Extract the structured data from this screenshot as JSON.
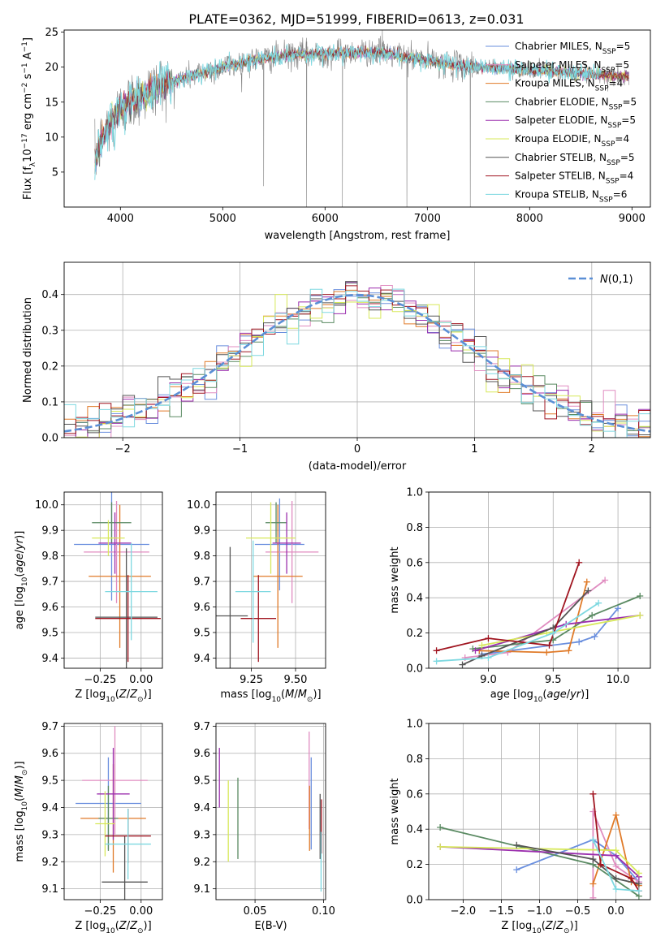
{
  "figure_title": "PLATE=0362, MJD=51999, FIBERID=0613, z=0.031",
  "colors": {
    "Chabrier MILES": "#6a8fde",
    "Salpeter MILES": "#e08cc0",
    "Kroupa MILES": "#e07a28",
    "Chabrier ELODIE": "#5a8a62",
    "Salpeter ELODIE": "#9b2fae",
    "Kroupa ELODIE": "#d7e85a",
    "Chabrier STELIB": "#555555",
    "Salpeter STELIB": "#a01520",
    "Kroupa STELIB": "#7dd8e0",
    "gauss": "#5b8fd6"
  },
  "chart_data": [
    {
      "id": "spectrum",
      "type": "line",
      "xlabel": "wavelength [Angstrom, rest frame]",
      "ylabel_parts": [
        "Flux [f",
        "λ",
        "10",
        "−17",
        " erg cm",
        "−2",
        " s",
        "−1",
        " A",
        "−1",
        "]"
      ],
      "xlim": [
        3450,
        9180
      ],
      "ylim": [
        0,
        25.3
      ],
      "xticks": [
        4000,
        5000,
        6000,
        7000,
        8000,
        9000
      ],
      "yticks": [
        5,
        10,
        15,
        20,
        25
      ],
      "legend": [
        {
          "name": "Chabrier MILES",
          "nssp": "5"
        },
        {
          "name": "Salpeter MILES",
          "nssp": "5"
        },
        {
          "name": "Kroupa MILES",
          "nssp": "4"
        },
        {
          "name": "Chabrier ELODIE",
          "nssp": "5"
        },
        {
          "name": "Salpeter ELODIE",
          "nssp": "5"
        },
        {
          "name": "Kroupa ELODIE",
          "nssp": "4"
        },
        {
          "name": "Chabrier STELIB",
          "nssp": "5"
        },
        {
          "name": "Salpeter STELIB",
          "nssp": "4"
        },
        {
          "name": "Kroupa STELIB",
          "nssp": "6"
        }
      ],
      "nssp_prefix": "N",
      "nssp_sub": "SSP",
      "continuum": [
        [
          3750,
          6.5
        ],
        [
          3800,
          9
        ],
        [
          3900,
          12
        ],
        [
          4000,
          14
        ],
        [
          4200,
          16
        ],
        [
          4400,
          17.5
        ],
        [
          4700,
          18.8
        ],
        [
          5000,
          20
        ],
        [
          5300,
          21
        ],
        [
          5700,
          21.8
        ],
        [
          6100,
          22
        ],
        [
          6500,
          22.2
        ],
        [
          6900,
          21.2
        ],
        [
          7300,
          20.2
        ],
        [
          7600,
          20
        ],
        [
          8000,
          19.6
        ],
        [
          8400,
          19.2
        ],
        [
          8800,
          18.8
        ],
        [
          8970,
          18.6
        ]
      ],
      "spikes": [
        [
          5400,
          3
        ],
        [
          5820,
          0
        ],
        [
          6170,
          0
        ],
        [
          6560,
          25.3
        ],
        [
          6800,
          0
        ],
        [
          7420,
          0
        ]
      ]
    },
    {
      "id": "residuals",
      "type": "histogram",
      "xlabel": "(data-model)/error",
      "ylabel": "Normed distribution",
      "xlim": [
        -2.5,
        2.5
      ],
      "ylim": [
        0,
        0.49
      ],
      "xticks": [
        -2,
        -1,
        0,
        1,
        2
      ],
      "yticks": [
        0.0,
        0.1,
        0.2,
        0.3,
        0.4
      ],
      "gauss_label": "N(0,1)",
      "bin_width": 0.1
    },
    {
      "id": "age_vs_Z",
      "type": "errorbar",
      "xlabel": "Z [log10(Z/Z☉)]",
      "ylabel": "age [log10(age/yr)]",
      "xlim": [
        -0.47,
        0.13
      ],
      "ylim": [
        9.36,
        10.05
      ],
      "xticks": [
        -0.25,
        0.0
      ],
      "yticks": [
        9.4,
        9.5,
        9.6,
        9.7,
        9.8,
        9.9,
        10.0
      ],
      "points": [
        {
          "name": "Chabrier MILES",
          "x": -0.18,
          "xerr": 0.23,
          "y": 9.845,
          "yerr": 0.22
        },
        {
          "name": "Salpeter MILES",
          "x": -0.15,
          "xerr": 0.2,
          "y": 9.815,
          "yerr": 0.2
        },
        {
          "name": "Kroupa MILES",
          "x": -0.13,
          "xerr": 0.19,
          "y": 9.72,
          "yerr": 0.28
        },
        {
          "name": "Chabrier ELODIE",
          "x": -0.18,
          "xerr": 0.12,
          "y": 9.93,
          "yerr": 0.08
        },
        {
          "name": "Salpeter ELODIE",
          "x": -0.16,
          "xerr": 0.1,
          "y": 9.85,
          "yerr": 0.12
        },
        {
          "name": "Kroupa ELODIE",
          "x": -0.2,
          "xerr": 0.1,
          "y": 9.87,
          "yerr": 0.07
        },
        {
          "name": "Chabrier STELIB",
          "x": -0.09,
          "xerr": 0.19,
          "y": 9.56,
          "yerr": 0.27
        },
        {
          "name": "Salpeter STELIB",
          "x": -0.08,
          "xerr": 0.2,
          "y": 9.555,
          "yerr": 0.17
        },
        {
          "name": "Kroupa STELIB",
          "x": -0.06,
          "xerr": 0.16,
          "y": 9.66,
          "yerr": 0.19
        }
      ]
    },
    {
      "id": "age_vs_mass",
      "type": "errorbar",
      "xlabel": "mass [log10(M/M☉)]",
      "ylabel": "",
      "xlim": [
        9.05,
        9.67
      ],
      "ylim": [
        9.36,
        10.05
      ],
      "xticks": [
        9.25,
        9.5
      ],
      "yticks": [
        9.4,
        9.5,
        9.6,
        9.7,
        9.8,
        9.9,
        10.0
      ],
      "points": [
        {
          "name": "Chabrier MILES",
          "x": 9.41,
          "xerr": 0.14,
          "y": 9.845,
          "yerr": 0.18
        },
        {
          "name": "Salpeter MILES",
          "x": 9.48,
          "xerr": 0.15,
          "y": 9.815,
          "yerr": 0.2
        },
        {
          "name": "Kroupa MILES",
          "x": 9.4,
          "xerr": 0.14,
          "y": 9.72,
          "yerr": 0.28
        },
        {
          "name": "Chabrier ELODIE",
          "x": 9.39,
          "xerr": 0.06,
          "y": 9.93,
          "yerr": 0.08
        },
        {
          "name": "Salpeter ELODIE",
          "x": 9.45,
          "xerr": 0.08,
          "y": 9.85,
          "yerr": 0.12
        },
        {
          "name": "Kroupa ELODIE",
          "x": 9.36,
          "xerr": 0.14,
          "y": 9.87,
          "yerr": 0.14
        },
        {
          "name": "Chabrier STELIB",
          "x": 9.13,
          "xerr": 0.1,
          "y": 9.565,
          "yerr": 0.27
        },
        {
          "name": "Salpeter STELIB",
          "x": 9.29,
          "xerr": 0.1,
          "y": 9.555,
          "yerr": 0.17
        },
        {
          "name": "Kroupa STELIB",
          "x": 9.26,
          "xerr": 0.1,
          "y": 9.66,
          "yerr": 0.2
        }
      ]
    },
    {
      "id": "weight_vs_age",
      "type": "line",
      "xlabel": "age [log10(age/yr)]",
      "ylabel": "mass weight",
      "xlim": [
        8.54,
        10.25
      ],
      "ylim": [
        0,
        1
      ],
      "xticks": [
        9.0,
        9.5,
        10.0
      ],
      "yticks": [
        0.0,
        0.2,
        0.4,
        0.6,
        0.8,
        1.0
      ],
      "series": [
        {
          "name": "Chabrier MILES",
          "x": [
            8.95,
            9.7,
            9.82,
            10.0
          ],
          "y": [
            0.08,
            0.15,
            0.18,
            0.34
          ]
        },
        {
          "name": "Salpeter MILES",
          "x": [
            8.82,
            9.15,
            9.9
          ],
          "y": [
            0.06,
            0.09,
            0.5
          ]
        },
        {
          "name": "Kroupa MILES",
          "x": [
            8.93,
            9.45,
            9.62,
            9.76
          ],
          "y": [
            0.1,
            0.09,
            0.1,
            0.49
          ]
        },
        {
          "name": "Chabrier ELODIE",
          "x": [
            8.88,
            9.5,
            9.8,
            10.17
          ],
          "y": [
            0.11,
            0.16,
            0.3,
            0.41
          ]
        },
        {
          "name": "Salpeter ELODIE",
          "x": [
            8.9,
            9.6,
            10.17
          ],
          "y": [
            0.1,
            0.25,
            0.3
          ]
        },
        {
          "name": "Kroupa ELODIE",
          "x": [
            8.95,
            9.45,
            10.17
          ],
          "y": [
            0.13,
            0.2,
            0.3
          ]
        },
        {
          "name": "Chabrier STELIB",
          "x": [
            8.8,
            8.95,
            9.5,
            9.77
          ],
          "y": [
            0.02,
            0.07,
            0.23,
            0.44
          ]
        },
        {
          "name": "Salpeter STELIB",
          "x": [
            8.6,
            9.0,
            9.47,
            9.7
          ],
          "y": [
            0.1,
            0.17,
            0.13,
            0.6
          ]
        },
        {
          "name": "Kroupa STELIB",
          "x": [
            8.6,
            9.0,
            9.5,
            9.85
          ],
          "y": [
            0.04,
            0.06,
            0.2,
            0.37
          ]
        }
      ]
    },
    {
      "id": "mass_vs_Z",
      "type": "errorbar",
      "xlabel": "Z [log10(Z/Z☉)]",
      "ylabel": "mass [log10(M/M☉)]",
      "xlim": [
        -0.47,
        0.13
      ],
      "ylim": [
        9.06,
        9.71
      ],
      "xticks": [
        -0.25,
        0.0
      ],
      "yticks": [
        9.1,
        9.2,
        9.3,
        9.4,
        9.5,
        9.6,
        9.7
      ],
      "points": [
        {
          "name": "Chabrier MILES",
          "x": -0.2,
          "xerr": 0.2,
          "y": 9.415,
          "yerr": 0.17
        },
        {
          "name": "Salpeter MILES",
          "x": -0.16,
          "xerr": 0.2,
          "y": 9.5,
          "yerr": 0.2
        },
        {
          "name": "Kroupa MILES",
          "x": -0.17,
          "xerr": 0.2,
          "y": 9.36,
          "yerr": 0.2
        },
        {
          "name": "Chabrier ELODIE",
          "x": -0.2,
          "xerr": 0.06,
          "y": 9.36,
          "yerr": 0.12
        },
        {
          "name": "Salpeter ELODIE",
          "x": -0.17,
          "xerr": 0.1,
          "y": 9.45,
          "yerr": 0.17
        },
        {
          "name": "Kroupa ELODIE",
          "x": -0.22,
          "xerr": 0.06,
          "y": 9.34,
          "yerr": 0.12
        },
        {
          "name": "Chabrier STELIB",
          "x": -0.1,
          "xerr": 0.14,
          "y": 9.125,
          "yerr": 0.17
        },
        {
          "name": "Salpeter STELIB",
          "x": -0.08,
          "xerr": 0.14,
          "y": 9.295,
          "yerr": 0.1
        },
        {
          "name": "Kroupa STELIB",
          "x": -0.08,
          "xerr": 0.14,
          "y": 9.265,
          "yerr": 0.13
        }
      ]
    },
    {
      "id": "mass_vs_ebv",
      "type": "errorbar",
      "xlabel": "E(B-V)",
      "ylabel": "",
      "xlim": [
        0.0215,
        0.1015
      ],
      "ylim": [
        9.06,
        9.71
      ],
      "xticks": [
        0.05,
        0.1
      ],
      "yticks": [
        9.1,
        9.2,
        9.3,
        9.4,
        9.5,
        9.6,
        9.7
      ],
      "points": [
        {
          "name": "Chabrier MILES",
          "x": 0.091,
          "xerr": 0,
          "y": 9.415,
          "yerr": 0.17
        },
        {
          "name": "Salpeter MILES",
          "x": 0.0895,
          "xerr": 0,
          "y": 9.5,
          "yerr": 0.18
        },
        {
          "name": "Kroupa MILES",
          "x": 0.0898,
          "xerr": 0,
          "y": 9.36,
          "yerr": 0.12
        },
        {
          "name": "Chabrier ELODIE",
          "x": 0.0375,
          "xerr": 0,
          "y": 9.36,
          "yerr": 0.15
        },
        {
          "name": "Salpeter ELODIE",
          "x": 0.024,
          "xerr": 0,
          "y": 9.51,
          "yerr": 0.11
        },
        {
          "name": "Kroupa ELODIE",
          "x": 0.0305,
          "xerr": 0,
          "y": 9.35,
          "yerr": 0.15
        },
        {
          "name": "Chabrier STELIB",
          "x": 0.0975,
          "xerr": 0,
          "y": 9.33,
          "yerr": 0.12
        },
        {
          "name": "Salpeter STELIB",
          "x": 0.0985,
          "xerr": 0,
          "y": 9.33,
          "yerr": 0.1
        },
        {
          "name": "Kroupa STELIB",
          "x": 0.0982,
          "xerr": 0,
          "y": 9.2,
          "yerr": 0.11
        }
      ]
    },
    {
      "id": "weight_vs_Z",
      "type": "line",
      "xlabel": "Z [log10(Z/Z☉)]",
      "ylabel": "mass weight",
      "xlim": [
        -2.45,
        0.45
      ],
      "ylim": [
        0,
        1
      ],
      "xticks": [
        -2.0,
        -1.5,
        -1.0,
        -0.5,
        0.0
      ],
      "yticks": [
        0.0,
        0.2,
        0.4,
        0.6,
        0.8,
        1.0
      ],
      "series": [
        {
          "name": "Chabrier MILES",
          "x": [
            -1.3,
            -0.3,
            0.0,
            0.3
          ],
          "y": [
            0.17,
            0.34,
            0.25,
            0.1
          ]
        },
        {
          "name": "Salpeter MILES",
          "x": [
            -0.3,
            -0.3,
            0.0,
            0.3
          ],
          "y": [
            0.01,
            0.5,
            0.19,
            0.1
          ]
        },
        {
          "name": "Kroupa MILES",
          "x": [
            -0.3,
            0.0,
            0.2,
            0.3
          ],
          "y": [
            0.09,
            0.48,
            0.1,
            0.08
          ]
        },
        {
          "name": "Chabrier ELODIE",
          "x": [
            -2.3,
            -0.3,
            0.3
          ],
          "y": [
            0.41,
            0.2,
            0.02
          ]
        },
        {
          "name": "Salpeter ELODIE",
          "x": [
            -2.3,
            0.0,
            0.3
          ],
          "y": [
            0.3,
            0.25,
            0.13
          ]
        },
        {
          "name": "Kroupa ELODIE",
          "x": [
            -2.3,
            0.0,
            0.3
          ],
          "y": [
            0.3,
            0.28,
            0.15
          ]
        },
        {
          "name": "Chabrier STELIB",
          "x": [
            -1.3,
            -0.3,
            0.0,
            0.3
          ],
          "y": [
            0.31,
            0.23,
            0.12,
            0.09
          ]
        },
        {
          "name": "Salpeter STELIB",
          "x": [
            -0.3,
            -0.2,
            0.2,
            0.3
          ],
          "y": [
            0.6,
            0.2,
            0.12,
            0.05
          ]
        },
        {
          "name": "Kroupa STELIB",
          "x": [
            -0.3,
            0.0,
            0.3
          ],
          "y": [
            0.34,
            0.06,
            0.05
          ]
        }
      ]
    }
  ]
}
